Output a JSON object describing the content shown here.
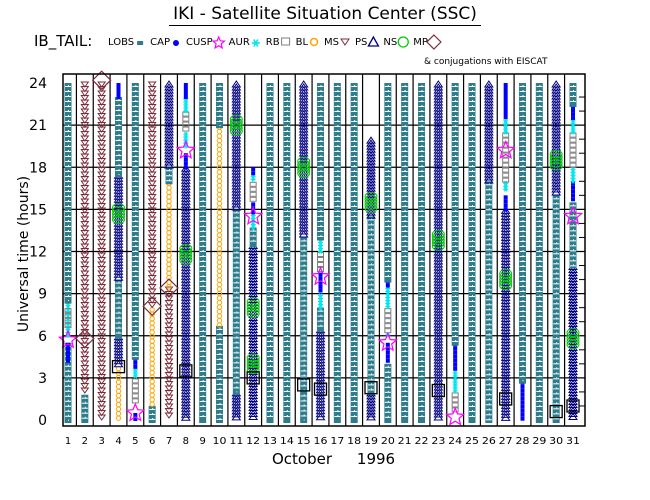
{
  "chart_data": {
    "type": "timeline",
    "title": "IKI - Satellite Situation Center (SSC)",
    "legend_title": "IB_TAIL:",
    "legend_note": "& conjugations with EISCAT",
    "legend": [
      {
        "key": "LOBS",
        "label": "LOBS",
        "symbol": "small-square",
        "color": "#2e7d8c"
      },
      {
        "key": "CAP",
        "label": "CAP",
        "symbol": "filled-circle",
        "color": "#0000ff"
      },
      {
        "key": "CUSP",
        "label": "CUSP",
        "symbol": "star",
        "color": "#ff00ff"
      },
      {
        "key": "AUR",
        "label": "AUR",
        "symbol": "asterisk",
        "color": "#00e5ee"
      },
      {
        "key": "RB",
        "label": "RB",
        "symbol": "open-square",
        "color": "#808080"
      },
      {
        "key": "BL",
        "label": "BL",
        "symbol": "sun",
        "color": "#ffa500"
      },
      {
        "key": "MS",
        "label": "MS",
        "symbol": "down-triangle",
        "color": "#7b2c3a"
      },
      {
        "key": "PS",
        "label": "PS",
        "symbol": "triangle",
        "color": "#000080"
      },
      {
        "key": "NS",
        "label": "NS",
        "symbol": "open-circle",
        "color": "#00cc00"
      },
      {
        "key": "MP",
        "label": "MP",
        "symbol": "diamond",
        "color": "#7b2c3a"
      }
    ],
    "legend_entries_text": [
      "LOBS",
      "CAP",
      "CUSP",
      "AUR",
      "RB",
      "BL",
      "MS",
      "PS",
      "NS",
      "MP"
    ],
    "xlabel_month": "October",
    "xlabel_year": "1996",
    "ylabel": "Universal time (hours)",
    "x_ticks": [
      "1",
      "2",
      "3",
      "4",
      "5",
      "6",
      "7",
      "8",
      "9",
      "10",
      "11",
      "12",
      "13",
      "14",
      "15",
      "16",
      "17",
      "18",
      "19",
      "20",
      "21",
      "22",
      "23",
      "24",
      "25",
      "26",
      "27",
      "28",
      "29",
      "30",
      "31"
    ],
    "y_ticks": [
      "0",
      "3",
      "6",
      "9",
      "12",
      "15",
      "18",
      "21",
      "24"
    ],
    "ylim": [
      0,
      24
    ],
    "xlim": [
      1,
      31
    ],
    "grid": true,
    "days": [
      {
        "day": 1,
        "segments": [
          [
            "LOBS",
            0,
            5.5
          ],
          [
            "CAP",
            4,
            5.5
          ],
          [
            "AUR",
            6,
            8.5
          ],
          [
            "RB",
            6.3,
            8
          ],
          [
            "LOBS",
            8.5,
            24
          ]
        ],
        "markers": [
          [
            "CUSP",
            5.7
          ]
        ]
      },
      {
        "day": 2,
        "segments": [
          [
            "LOBS",
            0,
            1.8
          ],
          [
            "MS",
            1.8,
            24
          ]
        ],
        "markers": [
          [
            "MP",
            5.8
          ]
        ]
      },
      {
        "day": 3,
        "segments": [
          [
            "MS",
            0,
            24
          ]
        ],
        "markers": [
          [
            "MP",
            24.2
          ]
        ]
      },
      {
        "day": 4,
        "segments": [
          [
            "BL",
            0,
            3.8
          ],
          [
            "PS",
            3.8,
            6
          ],
          [
            "LOBS",
            6,
            10
          ],
          [
            "PS",
            10,
            17.5
          ],
          [
            "LOBS",
            17.5,
            23
          ],
          [
            "CAP",
            23,
            24
          ]
        ],
        "markers": [
          [
            "BL-box",
            3.8
          ],
          [
            "NS",
            14.7
          ]
        ]
      },
      {
        "day": 5,
        "segments": [
          [
            "CAP",
            0,
            0.5
          ],
          [
            "RB",
            1,
            3
          ],
          [
            "AUR",
            3,
            3.7
          ],
          [
            "CAP",
            3.7,
            4.5
          ],
          [
            "LOBS",
            4.5,
            24
          ]
        ],
        "markers": [
          [
            "CUSP",
            0.5
          ]
        ]
      },
      {
        "day": 6,
        "segments": [
          [
            "LOBS",
            0,
            1
          ],
          [
            "BL",
            1,
            8
          ],
          [
            "MS",
            8,
            24
          ]
        ],
        "markers": [
          [
            "MP",
            8.1
          ]
        ]
      },
      {
        "day": 7,
        "segments": [
          [
            "MS",
            0,
            9.4
          ],
          [
            "BL",
            9.4,
            17
          ],
          [
            "LOBS",
            17,
            18
          ],
          [
            "PS",
            18,
            24
          ]
        ],
        "markers": [
          [
            "MP",
            9.4
          ]
        ]
      },
      {
        "day": 8,
        "segments": [
          [
            "PS",
            0,
            18
          ],
          [
            "CAP",
            18,
            19
          ],
          [
            "AUR",
            19.3,
            20.5
          ],
          [
            "RB",
            20.5,
            22
          ],
          [
            "AUR",
            22,
            23
          ],
          [
            "CAP",
            23,
            24
          ]
        ],
        "markers": [
          [
            "CUSP",
            19.2
          ],
          [
            "NS",
            11.8
          ],
          [
            "BL-box",
            3.5
          ]
        ]
      },
      {
        "day": 9,
        "segments": [
          [
            "LOBS",
            0,
            24
          ]
        ],
        "markers": []
      },
      {
        "day": 10,
        "segments": [
          [
            "LOBS",
            0,
            6.7
          ],
          [
            "BL",
            6.7,
            21
          ],
          [
            "LOBS",
            21,
            24
          ]
        ],
        "markers": []
      },
      {
        "day": 11,
        "segments": [
          [
            "PS",
            0,
            2
          ],
          [
            "LOBS",
            2,
            15
          ],
          [
            "PS",
            15,
            24
          ]
        ],
        "markers": [
          [
            "NS",
            21
          ]
        ]
      },
      {
        "day": 12,
        "segments": [
          [
            "PS",
            0,
            12.5
          ],
          [
            "LOBS",
            12.5,
            13.7
          ],
          [
            "AUR",
            13.7,
            14.7
          ],
          [
            "CAP",
            14.7,
            15.5
          ],
          [
            "RB",
            15.5,
            17
          ],
          [
            "AUR",
            17,
            17.5
          ],
          [
            "CAP",
            17.5,
            18
          ]
        ],
        "markers": [
          [
            "CUSP",
            14.5
          ],
          [
            "NS",
            8
          ],
          [
            "NS",
            4
          ],
          [
            "BL-box",
            3
          ]
        ]
      },
      {
        "day": 13,
        "segments": [
          [
            "LOBS",
            0,
            24
          ]
        ],
        "markers": []
      },
      {
        "day": 14,
        "segments": [
          [
            "LOBS",
            0,
            24
          ]
        ],
        "markers": []
      },
      {
        "day": 15,
        "segments": [
          [
            "LOBS",
            0,
            13
          ],
          [
            "PS",
            13,
            24
          ]
        ],
        "markers": [
          [
            "NS",
            18
          ],
          [
            "BL-box",
            2.5
          ]
        ]
      },
      {
        "day": 16,
        "segments": [
          [
            "PS",
            0,
            6.5
          ],
          [
            "LOBS",
            6.5,
            8
          ],
          [
            "AUR",
            8,
            9
          ],
          [
            "CAP",
            9,
            10.5
          ],
          [
            "RB",
            10.5,
            12
          ],
          [
            "AUR",
            12,
            13
          ],
          [
            "LOBS",
            13,
            24
          ]
        ],
        "markers": [
          [
            "CUSP",
            10.2
          ],
          [
            "BL-box",
            2.2
          ]
        ]
      },
      {
        "day": 17,
        "segments": [
          [
            "LOBS",
            0,
            24
          ]
        ],
        "markers": []
      },
      {
        "day": 18,
        "segments": [
          [
            "LOBS",
            0,
            24
          ]
        ],
        "markers": []
      },
      {
        "day": 19,
        "segments": [
          [
            "PS",
            0,
            2
          ],
          [
            "LOBS",
            2,
            14.5
          ],
          [
            "PS",
            14.5,
            20
          ]
        ],
        "markers": [
          [
            "NS",
            15.5
          ],
          [
            "BL-box",
            2.3
          ]
        ]
      },
      {
        "day": 20,
        "segments": [
          [
            "LOBS",
            0,
            4
          ],
          [
            "CAP",
            4,
            5.5
          ],
          [
            "AUR",
            6,
            6.2
          ],
          [
            "RB",
            6.2,
            8
          ],
          [
            "AUR",
            8,
            9.5
          ],
          [
            "CAP",
            9.5,
            10
          ],
          [
            "LOBS",
            10,
            24
          ]
        ],
        "markers": [
          [
            "CUSP",
            5.5
          ]
        ]
      },
      {
        "day": 21,
        "segments": [
          [
            "LOBS",
            0,
            24
          ]
        ],
        "markers": []
      },
      {
        "day": 22,
        "segments": [
          [
            "LOBS",
            0,
            24
          ]
        ],
        "markers": []
      },
      {
        "day": 23,
        "segments": [
          [
            "PS",
            0,
            24
          ]
        ],
        "markers": [
          [
            "NS",
            12.8
          ],
          [
            "BL-box",
            2.1
          ]
        ]
      },
      {
        "day": 24,
        "segments": [
          [
            "RB",
            0.3,
            2
          ],
          [
            "AUR",
            2,
            3.5
          ],
          [
            "CAP",
            3.5,
            5.5
          ],
          [
            "LOBS",
            5.5,
            24
          ]
        ],
        "markers": [
          [
            "CUSP",
            0.2
          ]
        ]
      },
      {
        "day": 25,
        "segments": [
          [
            "LOBS",
            0,
            24
          ]
        ],
        "markers": []
      },
      {
        "day": 26,
        "segments": [
          [
            "LOBS",
            0,
            17
          ],
          [
            "PS",
            17,
            24
          ]
        ],
        "markers": []
      },
      {
        "day": 27,
        "segments": [
          [
            "PS",
            0,
            15
          ],
          [
            "CAP",
            15,
            16
          ],
          [
            "AUR",
            16.3,
            17
          ],
          [
            "RB",
            17,
            20.5
          ],
          [
            "AUR",
            20.5,
            21.5
          ],
          [
            "CAP",
            21.5,
            24
          ]
        ],
        "markers": [
          [
            "CUSP",
            19.2
          ],
          [
            "NS",
            10
          ],
          [
            "BL-box",
            1.5
          ]
        ]
      },
      {
        "day": 28,
        "segments": [
          [
            "CAP",
            0,
            2.8
          ],
          [
            "LOBS",
            2.8,
            24
          ]
        ],
        "markers": []
      },
      {
        "day": 29,
        "segments": [
          [
            "LOBS",
            0,
            24
          ]
        ],
        "markers": []
      },
      {
        "day": 30,
        "segments": [
          [
            "LOBS",
            0,
            16
          ],
          [
            "PS",
            16,
            24
          ]
        ],
        "markers": [
          [
            "NS",
            18.5
          ],
          [
            "BL-box",
            0.6
          ]
        ]
      },
      {
        "day": 31,
        "segments": [
          [
            "PS",
            0,
            11
          ],
          [
            "LOBS",
            11,
            15.5
          ],
          [
            "CAP",
            15.5,
            17
          ],
          [
            "AUR",
            17,
            18
          ],
          [
            "RB",
            18,
            20.5
          ],
          [
            "AUR",
            20.5,
            21.5
          ],
          [
            "CAP",
            21.5,
            22.5
          ],
          [
            "LOBS",
            22.5,
            24
          ]
        ],
        "markers": [
          [
            "CUSP",
            14.5
          ],
          [
            "NS",
            5.8
          ],
          [
            "BL-box",
            1
          ]
        ]
      }
    ]
  }
}
